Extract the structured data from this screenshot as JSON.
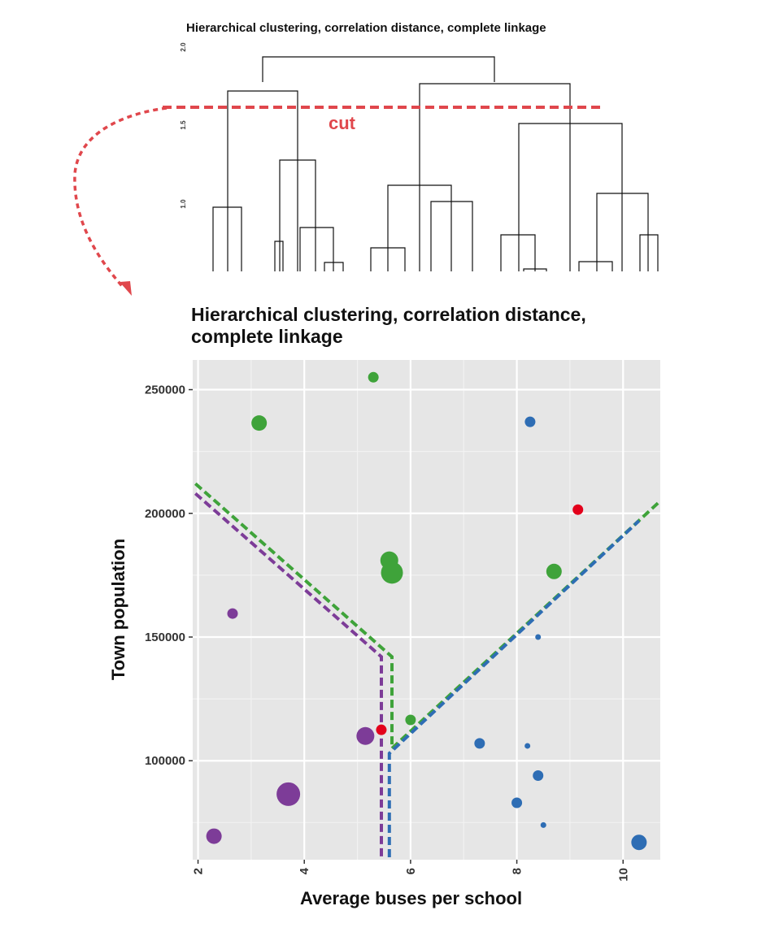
{
  "dendrogram": {
    "title": "Hierarchical clustering, correlation distance, complete linkage",
    "y_ticks": [
      "1.0",
      "1.5",
      "2.0"
    ],
    "cut_label": "cut",
    "cut_height": 1.6,
    "colors": {
      "cut": "#e0474c",
      "tree": "#111111"
    }
  },
  "chart_data": {
    "type": "scatter",
    "title": "Hierarchical clustering, correlation distance, complete linkage",
    "xlabel": "Average buses per school",
    "ylabel": "Town population",
    "xlim": [
      1.9,
      10.7
    ],
    "ylim": [
      60000,
      262000
    ],
    "x_ticks": [
      2,
      4,
      6,
      8,
      10
    ],
    "x_tick_labels": [
      "2",
      "4",
      "6",
      "8",
      "10"
    ],
    "y_ticks": [
      100000,
      150000,
      200000,
      250000
    ],
    "y_tick_labels": [
      "100000",
      "150000",
      "200000",
      "250000"
    ],
    "grid": true,
    "legend": "none",
    "colors": {
      "purple": "#7d3c98",
      "green": "#3fa33a",
      "blue": "#2e6db4",
      "red": "#e3001b",
      "panel": "#e6e6e6"
    },
    "points": [
      {
        "x": 5.3,
        "y": 255000,
        "size": 2,
        "color": "green"
      },
      {
        "x": 3.15,
        "y": 236500,
        "size": 3,
        "color": "green"
      },
      {
        "x": 8.25,
        "y": 237000,
        "size": 2,
        "color": "blue"
      },
      {
        "x": 9.15,
        "y": 201500,
        "size": 2,
        "color": "red"
      },
      {
        "x": 5.6,
        "y": 181000,
        "size": 4,
        "color": "green"
      },
      {
        "x": 5.65,
        "y": 176000,
        "size": 5,
        "color": "green"
      },
      {
        "x": 8.7,
        "y": 176500,
        "size": 3,
        "color": "green"
      },
      {
        "x": 2.65,
        "y": 159500,
        "size": 2,
        "color": "purple"
      },
      {
        "x": 8.4,
        "y": 150000,
        "size": 1,
        "color": "blue"
      },
      {
        "x": 6.0,
        "y": 116500,
        "size": 2,
        "color": "green"
      },
      {
        "x": 5.45,
        "y": 112500,
        "size": 2,
        "color": "red"
      },
      {
        "x": 5.15,
        "y": 110000,
        "size": 4,
        "color": "purple"
      },
      {
        "x": 7.3,
        "y": 107000,
        "size": 2,
        "color": "blue"
      },
      {
        "x": 8.2,
        "y": 106000,
        "size": 1,
        "color": "blue"
      },
      {
        "x": 8.4,
        "y": 94000,
        "size": 2,
        "color": "blue"
      },
      {
        "x": 3.7,
        "y": 86500,
        "size": 6,
        "color": "purple"
      },
      {
        "x": 8.0,
        "y": 83000,
        "size": 2,
        "color": "blue"
      },
      {
        "x": 8.5,
        "y": 74000,
        "size": 1,
        "color": "blue"
      },
      {
        "x": 2.3,
        "y": 69500,
        "size": 3,
        "color": "purple"
      },
      {
        "x": 10.3,
        "y": 67000,
        "size": 3,
        "color": "blue"
      }
    ],
    "boundaries": [
      {
        "color": "purple",
        "points": [
          [
            1.95,
            208000
          ],
          [
            5.45,
            142000
          ],
          [
            5.45,
            61000
          ]
        ]
      },
      {
        "color": "green",
        "points": [
          [
            1.95,
            212000
          ],
          [
            5.65,
            142000
          ],
          [
            5.65,
            105000
          ],
          [
            10.7,
            205000
          ]
        ]
      },
      {
        "color": "blue",
        "points": [
          [
            5.6,
            61000
          ],
          [
            5.6,
            103000
          ],
          [
            10.3,
            197000
          ]
        ]
      }
    ]
  }
}
